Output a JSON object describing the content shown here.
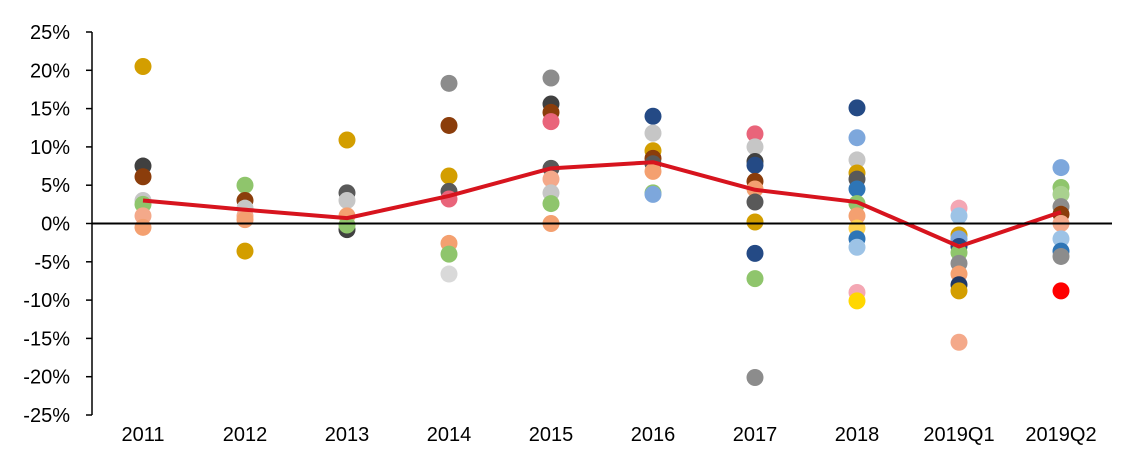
{
  "chart_data": {
    "type": "scatter",
    "title": "",
    "xlabel": "",
    "ylabel": "",
    "categories": [
      "2011",
      "2012",
      "2013",
      "2014",
      "2015",
      "2016",
      "2017",
      "2018",
      "2019Q1",
      "2019Q2"
    ],
    "ylim": [
      -25,
      25
    ],
    "yticks": [
      -25,
      -20,
      -15,
      -10,
      -5,
      0,
      5,
      10,
      15,
      20,
      25
    ],
    "ytick_labels": [
      "-25%",
      "-20%",
      "-15%",
      "-10%",
      "-5%",
      "0%",
      "5%",
      "10%",
      "15%",
      "20%",
      "25%"
    ],
    "grid": false,
    "legend": "none",
    "average_line": {
      "color": "#d7141e",
      "values": [
        3.0,
        1.8,
        0.7,
        3.6,
        7.2,
        8.0,
        4.4,
        2.8,
        -3.0,
        1.5
      ]
    },
    "points": [
      {
        "x": "2011",
        "y": 20.5,
        "color": "#d39e00"
      },
      {
        "x": "2011",
        "y": 7.5,
        "color": "#404040"
      },
      {
        "x": "2011",
        "y": 6.1,
        "color": "#8b3d0b"
      },
      {
        "x": "2011",
        "y": 3.0,
        "color": "#c6c6c6"
      },
      {
        "x": "2011",
        "y": 2.5,
        "color": "#8fc56c"
      },
      {
        "x": "2011",
        "y": 1.0,
        "color": "#f4a98a"
      },
      {
        "x": "2011",
        "y": -0.5,
        "color": "#f4a070"
      },
      {
        "x": "2012",
        "y": 5.0,
        "color": "#8fc56c"
      },
      {
        "x": "2012",
        "y": 3.0,
        "color": "#8b3d0b"
      },
      {
        "x": "2012",
        "y": 2.0,
        "color": "#c6c6c6"
      },
      {
        "x": "2012",
        "y": 1.0,
        "color": "#f4a98a"
      },
      {
        "x": "2012",
        "y": 0.5,
        "color": "#f4a070"
      },
      {
        "x": "2012",
        "y": -3.6,
        "color": "#d39e00"
      },
      {
        "x": "2013",
        "y": 10.9,
        "color": "#d39e00"
      },
      {
        "x": "2013",
        "y": 4.0,
        "color": "#595959"
      },
      {
        "x": "2013",
        "y": 3.0,
        "color": "#c6c6c6"
      },
      {
        "x": "2013",
        "y": 1.0,
        "color": "#f4a070"
      },
      {
        "x": "2013",
        "y": -0.8,
        "color": "#404040"
      },
      {
        "x": "2013",
        "y": -0.2,
        "color": "#8fc56c"
      },
      {
        "x": "2014",
        "y": 18.3,
        "color": "#8c8c8c"
      },
      {
        "x": "2014",
        "y": 12.8,
        "color": "#8b3d0b"
      },
      {
        "x": "2014",
        "y": 6.2,
        "color": "#d39e00"
      },
      {
        "x": "2014",
        "y": 4.2,
        "color": "#595959"
      },
      {
        "x": "2014",
        "y": 3.2,
        "color": "#e9647a"
      },
      {
        "x": "2014",
        "y": -2.6,
        "color": "#f4a070"
      },
      {
        "x": "2014",
        "y": -4.0,
        "color": "#8fc56c"
      },
      {
        "x": "2014",
        "y": -6.6,
        "color": "#d9d9d9"
      },
      {
        "x": "2015",
        "y": 19.0,
        "color": "#8c8c8c"
      },
      {
        "x": "2015",
        "y": 15.6,
        "color": "#404040"
      },
      {
        "x": "2015",
        "y": 14.5,
        "color": "#8b3d0b"
      },
      {
        "x": "2015",
        "y": 13.3,
        "color": "#e9647a"
      },
      {
        "x": "2015",
        "y": 7.2,
        "color": "#595959"
      },
      {
        "x": "2015",
        "y": 5.8,
        "color": "#f4a98a"
      },
      {
        "x": "2015",
        "y": 4.0,
        "color": "#c6c6c6"
      },
      {
        "x": "2015",
        "y": 2.6,
        "color": "#8fc56c"
      },
      {
        "x": "2015",
        "y": 0.0,
        "color": "#f4a070"
      },
      {
        "x": "2016",
        "y": 14.0,
        "color": "#244a85"
      },
      {
        "x": "2016",
        "y": 11.8,
        "color": "#c6c6c6"
      },
      {
        "x": "2016",
        "y": 9.5,
        "color": "#d39e00"
      },
      {
        "x": "2016",
        "y": 8.5,
        "color": "#8b3d0b"
      },
      {
        "x": "2016",
        "y": 7.8,
        "color": "#595959"
      },
      {
        "x": "2016",
        "y": 6.8,
        "color": "#f4a070"
      },
      {
        "x": "2016",
        "y": 4.0,
        "color": "#8fc56c"
      },
      {
        "x": "2016",
        "y": 3.8,
        "color": "#7da7dc"
      },
      {
        "x": "2017",
        "y": 11.7,
        "color": "#e9647a"
      },
      {
        "x": "2017",
        "y": 10.0,
        "color": "#c6c6c6"
      },
      {
        "x": "2017",
        "y": 8.1,
        "color": "#404040"
      },
      {
        "x": "2017",
        "y": 7.6,
        "color": "#244a85"
      },
      {
        "x": "2017",
        "y": 5.5,
        "color": "#8b3d0b"
      },
      {
        "x": "2017",
        "y": 4.5,
        "color": "#f4a070"
      },
      {
        "x": "2017",
        "y": 2.8,
        "color": "#595959"
      },
      {
        "x": "2017",
        "y": 0.2,
        "color": "#d39e00"
      },
      {
        "x": "2017",
        "y": -3.9,
        "color": "#244a85"
      },
      {
        "x": "2017",
        "y": -7.2,
        "color": "#8fc56c"
      },
      {
        "x": "2017",
        "y": -20.1,
        "color": "#8c8c8c"
      },
      {
        "x": "2018",
        "y": 15.1,
        "color": "#244a85"
      },
      {
        "x": "2018",
        "y": 11.2,
        "color": "#7da7dc"
      },
      {
        "x": "2018",
        "y": 8.3,
        "color": "#c6c6c6"
      },
      {
        "x": "2018",
        "y": 6.6,
        "color": "#d39e00"
      },
      {
        "x": "2018",
        "y": 5.8,
        "color": "#595959"
      },
      {
        "x": "2018",
        "y": 4.5,
        "color": "#2e75b6"
      },
      {
        "x": "2018",
        "y": 2.6,
        "color": "#8fc56c"
      },
      {
        "x": "2018",
        "y": 1.0,
        "color": "#f4a070"
      },
      {
        "x": "2018",
        "y": -0.6,
        "color": "#ffd34d"
      },
      {
        "x": "2018",
        "y": -2.0,
        "color": "#2e75b6"
      },
      {
        "x": "2018",
        "y": -3.1,
        "color": "#9dc3e6"
      },
      {
        "x": "2018",
        "y": -9.0,
        "color": "#f4a7b4"
      },
      {
        "x": "2018",
        "y": -10.1,
        "color": "#ffd700"
      },
      {
        "x": "2019Q1",
        "y": 2.0,
        "color": "#f4a7b4"
      },
      {
        "x": "2019Q1",
        "y": 1.0,
        "color": "#9dc3e6"
      },
      {
        "x": "2019Q1",
        "y": -1.5,
        "color": "#d39e00"
      },
      {
        "x": "2019Q1",
        "y": -2.0,
        "color": "#7da7dc"
      },
      {
        "x": "2019Q1",
        "y": -3.0,
        "color": "#244a85"
      },
      {
        "x": "2019Q1",
        "y": -3.8,
        "color": "#8fc56c"
      },
      {
        "x": "2019Q1",
        "y": -5.2,
        "color": "#8c8c8c"
      },
      {
        "x": "2019Q1",
        "y": -6.6,
        "color": "#f4a070"
      },
      {
        "x": "2019Q1",
        "y": -8.0,
        "color": "#1f3864"
      },
      {
        "x": "2019Q1",
        "y": -8.8,
        "color": "#d39e00"
      },
      {
        "x": "2019Q1",
        "y": -15.5,
        "color": "#f4a98a"
      },
      {
        "x": "2019Q2",
        "y": 7.3,
        "color": "#7da7dc"
      },
      {
        "x": "2019Q2",
        "y": 4.7,
        "color": "#8fc56c"
      },
      {
        "x": "2019Q2",
        "y": 3.8,
        "color": "#a9d18e"
      },
      {
        "x": "2019Q2",
        "y": 2.2,
        "color": "#8c8c8c"
      },
      {
        "x": "2019Q2",
        "y": 1.2,
        "color": "#8b3d0b"
      },
      {
        "x": "2019Q2",
        "y": 0.0,
        "color": "#f4a98a"
      },
      {
        "x": "2019Q2",
        "y": -2.0,
        "color": "#9dc3e6"
      },
      {
        "x": "2019Q2",
        "y": -3.6,
        "color": "#2e75b6"
      },
      {
        "x": "2019Q2",
        "y": -4.3,
        "color": "#8c8c8c"
      },
      {
        "x": "2019Q2",
        "y": -8.8,
        "color": "#ff0000"
      }
    ]
  }
}
